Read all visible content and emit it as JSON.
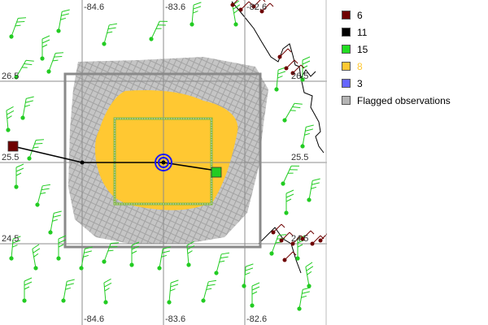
{
  "map": {
    "longitude_ticks": [
      "-84.6",
      "-83.6",
      "-82.6"
    ],
    "latitude_ticks": [
      "26.5",
      "25.5",
      "24.5"
    ],
    "lon_values": [
      -84.6,
      -83.6,
      -82.6
    ],
    "lat_values": [
      26.5,
      25.5,
      24.5
    ],
    "storm_track": [
      {
        "lon": -85.45,
        "lat": 25.7,
        "marker": "square",
        "color": "#6e0000"
      },
      {
        "lon": -84.6,
        "lat": 25.5
      },
      {
        "lon": -83.6,
        "lat": 25.5,
        "marker": "center-circle",
        "color": "#1a1aff"
      },
      {
        "lon": -82.95,
        "lat": 25.4
      },
      {
        "lon": -82.95,
        "lat": 25.38,
        "marker": "square",
        "color": "#22cc22"
      }
    ]
  },
  "legend": {
    "items": [
      {
        "label": "6",
        "color": "#6e0000",
        "label_color": "#000000"
      },
      {
        "label": "11",
        "color": "#000000",
        "label_color": "#000000"
      },
      {
        "label": "15",
        "color": "#22dd22",
        "label_color": "#000000"
      },
      {
        "label": "8",
        "color": "#ffc832",
        "label_color": "#ffc832"
      },
      {
        "label": "3",
        "color": "#6666ff",
        "label_color": "#000000"
      },
      {
        "label": "Flagged observations",
        "color": "#b4b4b4",
        "label_color": "#000000"
      }
    ]
  }
}
